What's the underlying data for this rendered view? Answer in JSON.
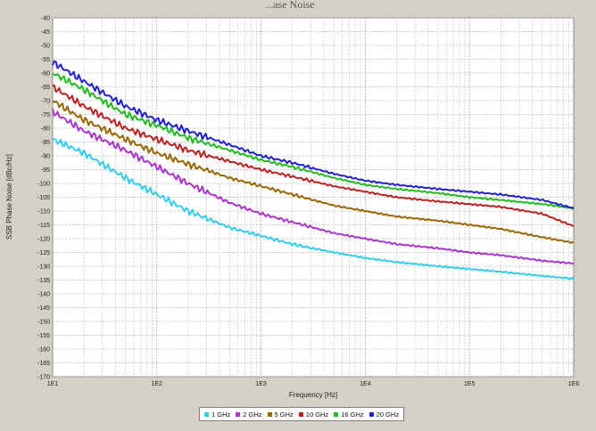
{
  "chart_data": {
    "type": "line",
    "title": "...ase Noise",
    "xlabel": "Frequency [Hz]",
    "ylabel": "SSB Phase Noise [dBc/Hz]",
    "xscale": "log",
    "xlim": [
      10,
      1000000
    ],
    "ylim": [
      -170,
      -40
    ],
    "x_ticks": [
      "1E1",
      "1E2",
      "1E3",
      "1E4",
      "1E5",
      "1E6"
    ],
    "y_ticks": [
      "-40",
      "-45",
      "-50",
      "-55",
      "-60",
      "-65",
      "-70",
      "-75",
      "-80",
      "-85",
      "-90",
      "-95",
      "-100",
      "-105",
      "-110",
      "-115",
      "-120",
      "-125",
      "-130",
      "-135",
      "-140",
      "-145",
      "-150",
      "-155",
      "-160",
      "-165",
      "-170"
    ],
    "grid": true,
    "legend_position": "bottom",
    "series": [
      {
        "name": "1 GHz",
        "color": "#33ccee",
        "x": [
          10,
          20,
          50,
          100,
          200,
          500,
          1000,
          2000,
          5000,
          10000,
          20000,
          50000,
          100000,
          200000,
          500000,
          1000000
        ],
        "y": [
          -84,
          -89,
          -98,
          -104,
          -110,
          -116,
          -119,
          -122,
          -125,
          -127,
          -128.5,
          -130,
          -131,
          -132,
          -133.5,
          -134.5
        ]
      },
      {
        "name": "2 GHz",
        "color": "#aa33cc",
        "x": [
          10,
          20,
          50,
          100,
          200,
          500,
          1000,
          2000,
          5000,
          10000,
          20000,
          50000,
          100000,
          200000,
          500000,
          1000000
        ],
        "y": [
          -74,
          -81,
          -88,
          -94,
          -100,
          -107,
          -111,
          -114,
          -118,
          -120,
          -122,
          -123.5,
          -125,
          -126,
          -128,
          -129
        ]
      },
      {
        "name": "5 GHz",
        "color": "#996600",
        "x": [
          10,
          20,
          50,
          100,
          200,
          500,
          1000,
          2000,
          5000,
          10000,
          20000,
          50000,
          100000,
          200000,
          500000,
          1000000
        ],
        "y": [
          -70,
          -77,
          -84,
          -89,
          -93,
          -98,
          -101,
          -104,
          -108,
          -110,
          -112,
          -113.5,
          -115,
          -116.5,
          -119.5,
          -121.5
        ]
      },
      {
        "name": "10 GHz",
        "color": "#bb2222",
        "x": [
          10,
          20,
          50,
          100,
          200,
          500,
          1000,
          2000,
          5000,
          10000,
          20000,
          50000,
          100000,
          200000,
          500000,
          1000000
        ],
        "y": [
          -65,
          -72,
          -80,
          -84,
          -88,
          -92,
          -95,
          -97.5,
          -101,
          -103,
          -105,
          -106.5,
          -107.5,
          -108.5,
          -111,
          -115.5
        ]
      },
      {
        "name": "16 GHz",
        "color": "#22bb22",
        "x": [
          10,
          20,
          50,
          100,
          200,
          500,
          1000,
          2000,
          5000,
          10000,
          20000,
          50000,
          100000,
          200000,
          500000,
          1000000
        ],
        "y": [
          -60,
          -66,
          -75,
          -79,
          -83.5,
          -88,
          -91.5,
          -94,
          -98,
          -100.5,
          -102,
          -103.5,
          -105,
          -106,
          -107.5,
          -109
        ]
      },
      {
        "name": "20 GHz",
        "color": "#2222cc",
        "x": [
          10,
          20,
          50,
          100,
          200,
          500,
          1000,
          2000,
          5000,
          10000,
          20000,
          50000,
          100000,
          200000,
          500000,
          1000000
        ],
        "y": [
          -56,
          -63,
          -72,
          -77,
          -81,
          -86,
          -90,
          -92.5,
          -96.5,
          -99,
          -100.5,
          -102,
          -103,
          -104,
          -106,
          -109
        ]
      }
    ]
  }
}
